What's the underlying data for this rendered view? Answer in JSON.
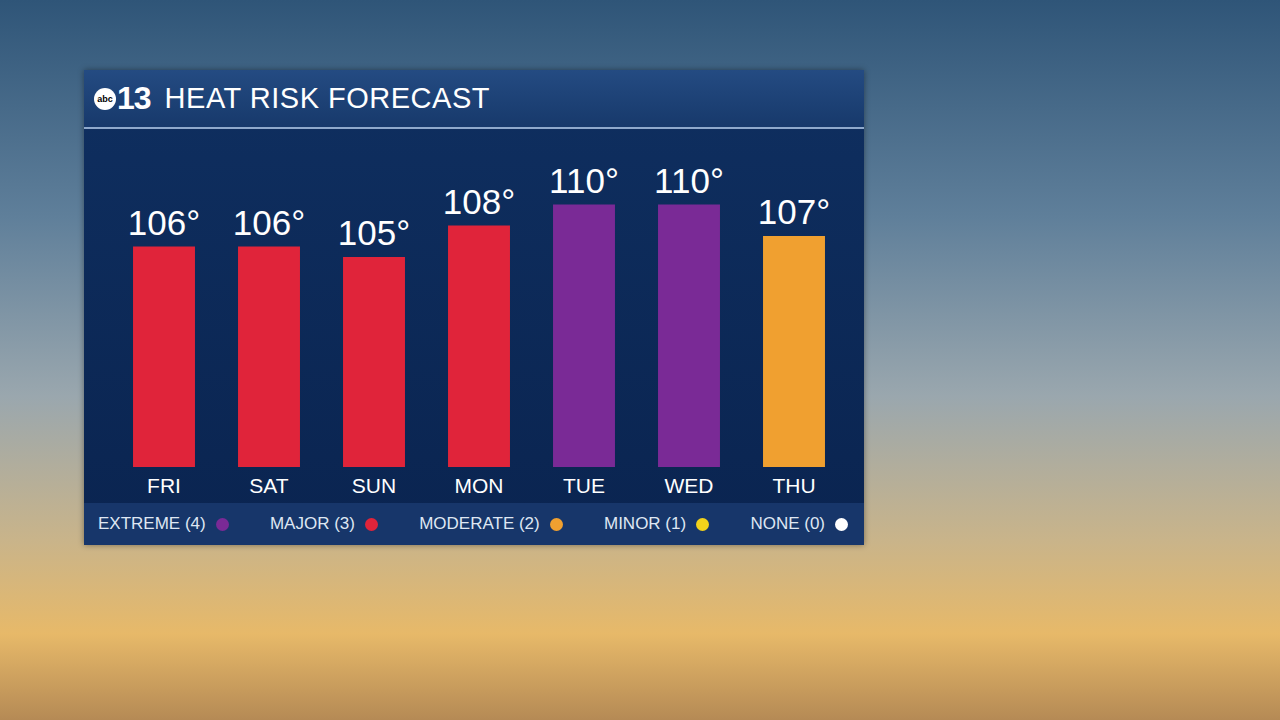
{
  "chart_data": {
    "type": "bar",
    "title": "HEAT RISK FORECAST",
    "logo_small": "abc",
    "logo": "13",
    "categories": [
      "FRI",
      "SAT",
      "SUN",
      "MON",
      "TUE",
      "WED",
      "THU"
    ],
    "values": [
      106,
      106,
      105,
      108,
      110,
      110,
      107
    ],
    "value_labels": [
      "106°",
      "106°",
      "105°",
      "108°",
      "110°",
      "110°",
      "107°"
    ],
    "colors": [
      "#e0243a",
      "#e0243a",
      "#e0243a",
      "#e0243a",
      "#7a2a96",
      "#7a2a96",
      "#f0a030"
    ],
    "risk_levels": [
      {
        "label": "EXTREME (4)",
        "color": "#7a2a96"
      },
      {
        "label": "MAJOR (3)",
        "color": "#e0243a"
      },
      {
        "label": "MODERATE (2)",
        "color": "#f0a030"
      },
      {
        "label": "MINOR (1)",
        "color": "#f2d21b"
      },
      {
        "label": "NONE (0)",
        "color": "#ffffff"
      }
    ],
    "ylim": [
      85,
      115
    ],
    "yticks": [
      85,
      115
    ],
    "grid": false,
    "data_labels": true,
    "tick_labels": "x"
  }
}
